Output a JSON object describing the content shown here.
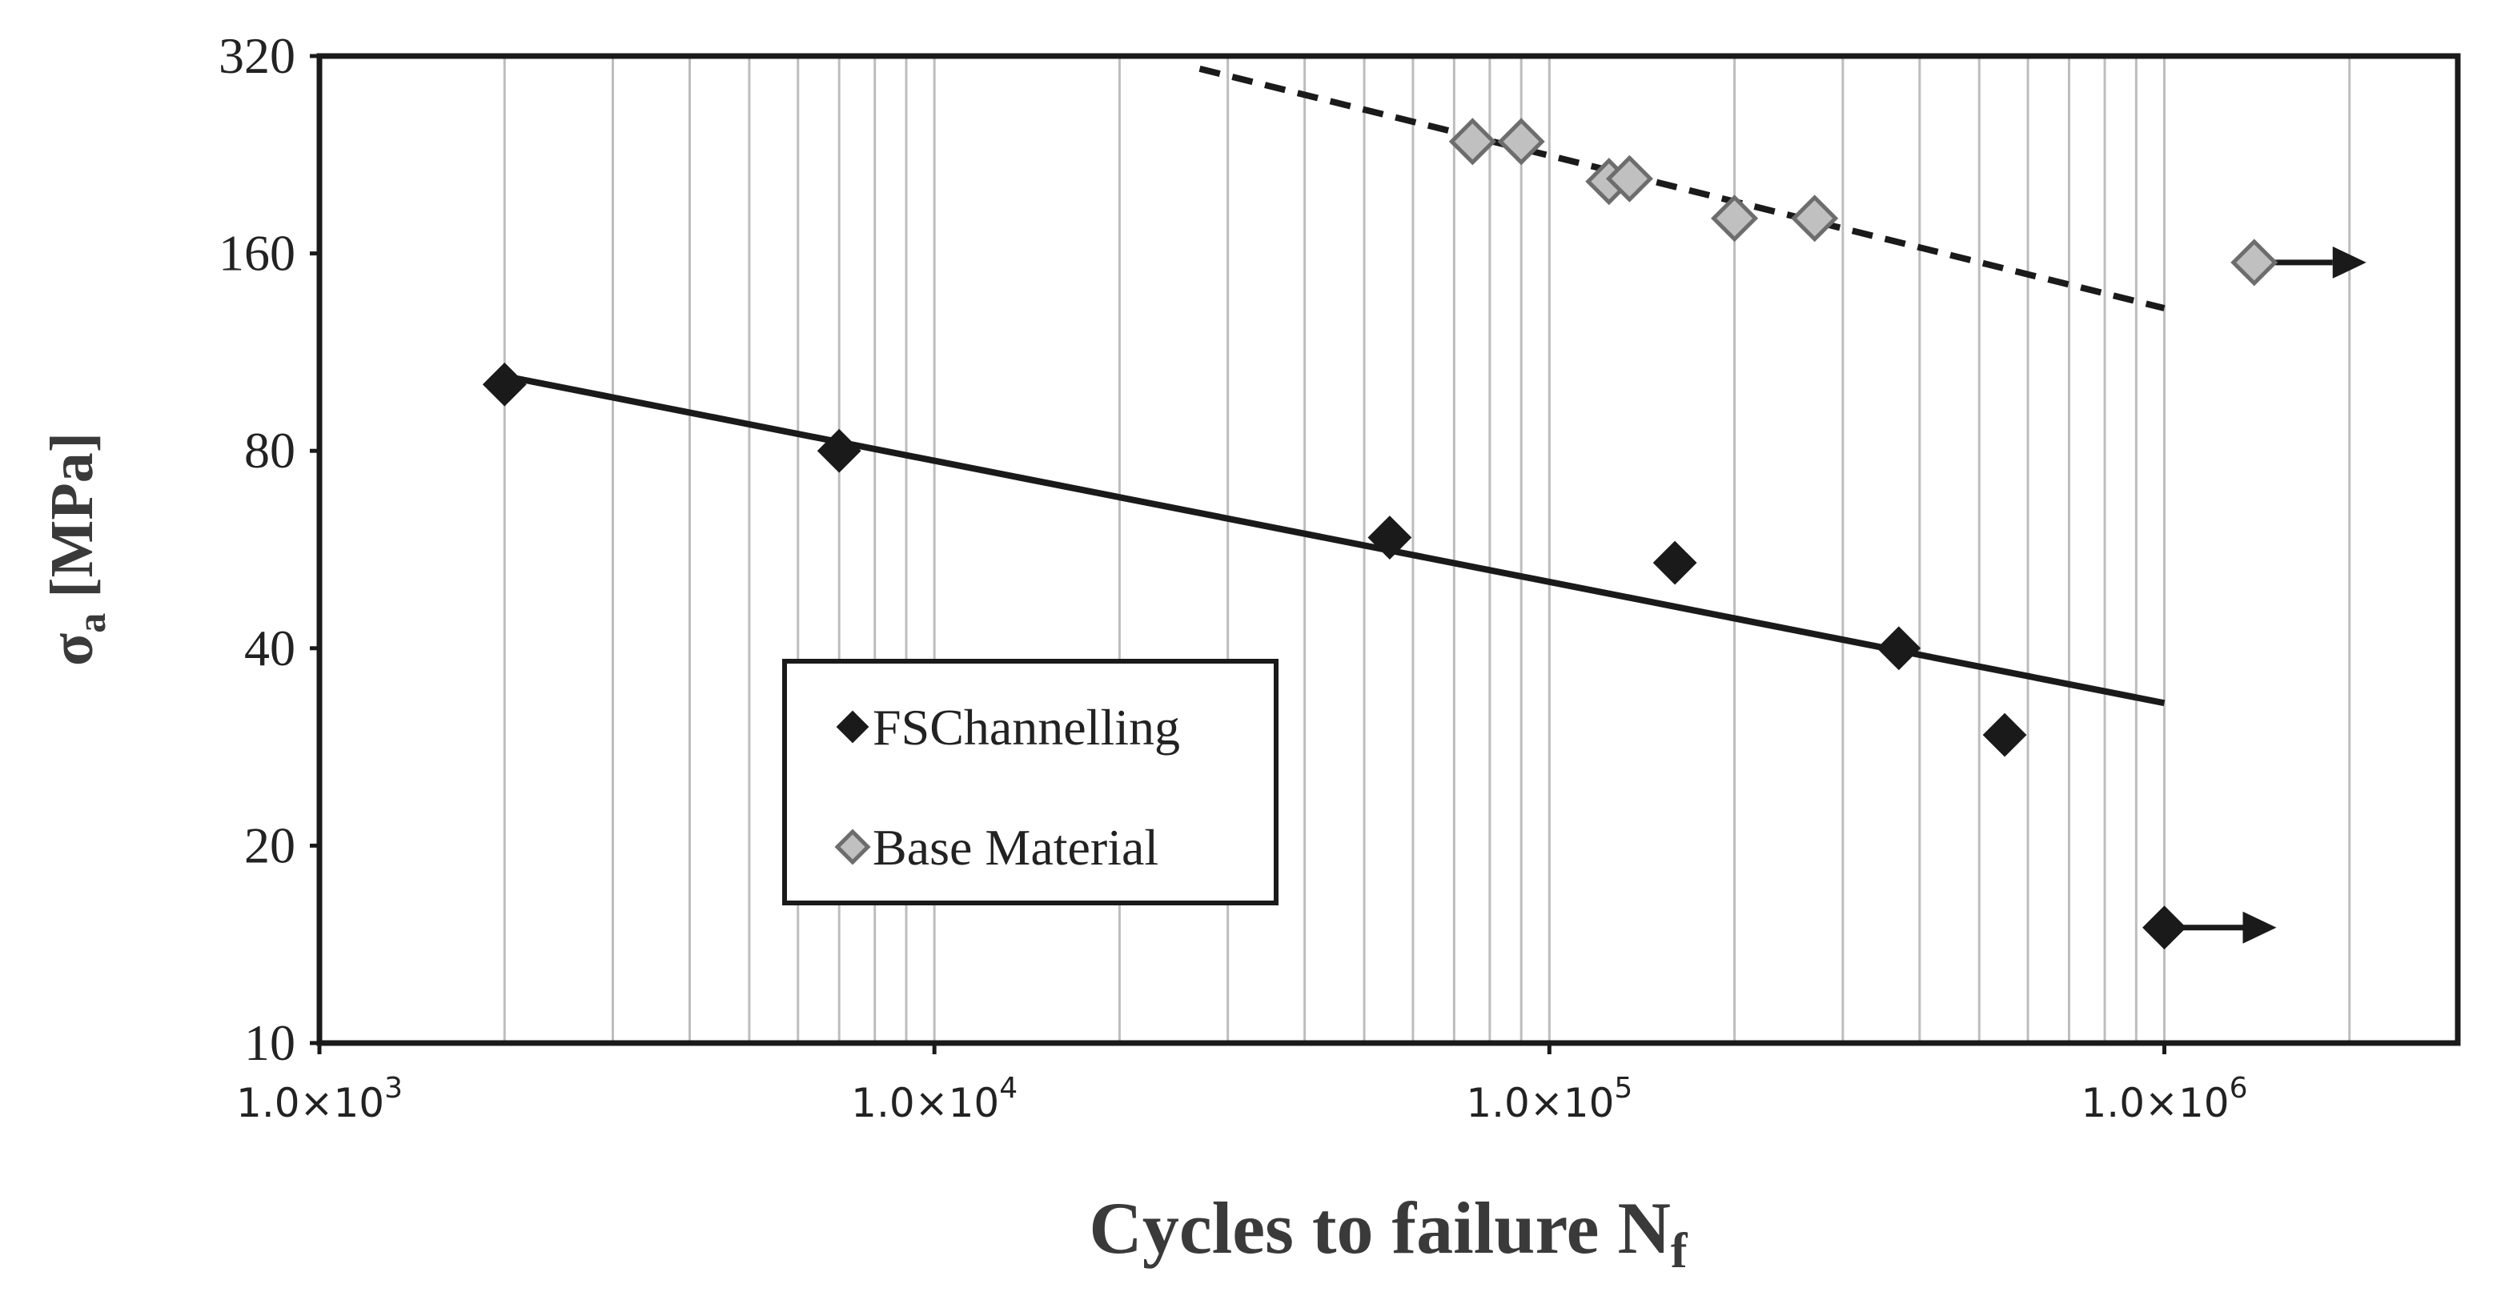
{
  "chart_data": {
    "type": "scatter",
    "x_scale": "log",
    "y_scale": "log",
    "xlim": [
      1000,
      3000000
    ],
    "ylim": [
      10,
      320
    ],
    "x_ticks": [
      {
        "value": 1000,
        "mantissa": "1.0",
        "times": "×",
        "base": "10",
        "exp": "3"
      },
      {
        "value": 10000,
        "mantissa": "1.0",
        "times": "×",
        "base": "10",
        "exp": "4"
      },
      {
        "value": 100000,
        "mantissa": "1.0",
        "times": "×",
        "base": "10",
        "exp": "5"
      },
      {
        "value": 1000000,
        "mantissa": "1.0",
        "times": "×",
        "base": "10",
        "exp": "6"
      }
    ],
    "y_ticks": [
      {
        "value": 10,
        "label": "10"
      },
      {
        "value": 20,
        "label": "20"
      },
      {
        "value": 40,
        "label": "40"
      },
      {
        "value": 80,
        "label": "80"
      },
      {
        "value": 160,
        "label": "160"
      },
      {
        "value": 320,
        "label": "320"
      }
    ],
    "xlabel": {
      "main": "Cycles to failure N",
      "sub": "f"
    },
    "ylabel": {
      "main": "σ",
      "sub": "a",
      "rest": " [MPa]"
    },
    "grid": {
      "vertical_minor": true,
      "horizontal": false
    },
    "legend": {
      "position": "bottom-left"
    },
    "series": [
      {
        "name": "FSChannelling",
        "marker": "filled-diamond",
        "color": "#1a1a1a",
        "points": [
          {
            "x": 2000,
            "y": 101
          },
          {
            "x": 7000,
            "y": 80
          },
          {
            "x": 55000,
            "y": 59
          },
          {
            "x": 160000,
            "y": 54
          },
          {
            "x": 370000,
            "y": 40
          },
          {
            "x": 550000,
            "y": 29.5
          }
        ],
        "runouts": [
          {
            "x": 1000000,
            "y": 15
          }
        ],
        "fit": {
          "style": "solid",
          "x": [
            2000,
            1000000
          ],
          "y": [
            104,
            33
          ]
        }
      },
      {
        "name": "Base Material",
        "marker": "gray-diamond",
        "color": "#c0c0c0",
        "points": [
          {
            "x": 75000,
            "y": 237
          },
          {
            "x": 90000,
            "y": 237
          },
          {
            "x": 125000,
            "y": 206
          },
          {
            "x": 135000,
            "y": 208
          },
          {
            "x": 200000,
            "y": 181
          },
          {
            "x": 270000,
            "y": 181
          }
        ],
        "runouts": [
          {
            "x": 1400000,
            "y": 155
          }
        ],
        "fit": {
          "style": "dashed",
          "x": [
            27000,
            1000000
          ],
          "y": [
            306,
            132
          ]
        }
      }
    ]
  }
}
